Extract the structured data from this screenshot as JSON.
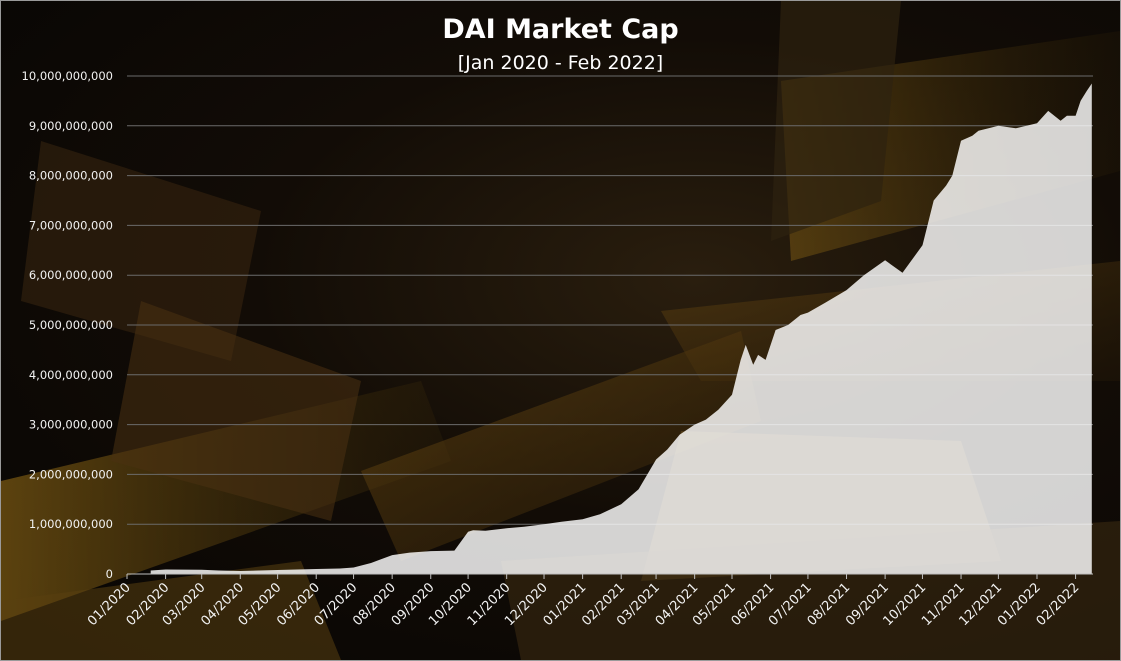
{
  "chart_data": {
    "type": "area",
    "title": "DAI Market Cap",
    "subtitle": "[Jan 2020 - Feb 2022]",
    "xlabel": "",
    "ylabel": "",
    "ylim": [
      0,
      10000000000
    ],
    "y_ticks": [
      0,
      1000000000,
      2000000000,
      3000000000,
      4000000000,
      5000000000,
      6000000000,
      7000000000,
      8000000000,
      9000000000,
      10000000000
    ],
    "y_tick_labels": [
      "0",
      "1,000,000,000",
      "2,000,000,000",
      "3,000,000,000",
      "4,000,000,000",
      "5,000,000,000",
      "6,000,000,000",
      "7,000,000,000",
      "8,000,000,000",
      "9,000,000,000",
      "10,000,000,000"
    ],
    "x_tick_labels": [
      "01/2020",
      "02/2020",
      "03/2020",
      "04/2020",
      "05/2020",
      "06/2020",
      "07/2020",
      "08/2020",
      "09/2020",
      "10/2020",
      "11/2020",
      "12/2020",
      "01/2021",
      "02/2021",
      "03/2021",
      "04/2021",
      "05/2021",
      "06/2021",
      "07/2021",
      "08/2021",
      "09/2021",
      "10/2021",
      "11/2021",
      "12/2021",
      "01/2022",
      "02/2022"
    ],
    "grid": true,
    "legend": "none",
    "fill_color": "#ffffff",
    "x": [
      "2020-01-20",
      "2020-02-01",
      "2020-03-01",
      "2020-03-15",
      "2020-04-01",
      "2020-05-01",
      "2020-06-01",
      "2020-06-20",
      "2020-07-01",
      "2020-07-15",
      "2020-08-01",
      "2020-08-15",
      "2020-09-01",
      "2020-09-20",
      "2020-10-01",
      "2020-10-05",
      "2020-10-15",
      "2020-11-01",
      "2020-11-15",
      "2020-12-01",
      "2020-12-15",
      "2021-01-01",
      "2021-01-15",
      "2021-02-01",
      "2021-02-15",
      "2021-03-01",
      "2021-03-10",
      "2021-03-20",
      "2021-04-01",
      "2021-04-10",
      "2021-04-20",
      "2021-05-01",
      "2021-05-08",
      "2021-05-12",
      "2021-05-18",
      "2021-05-22",
      "2021-05-28",
      "2021-06-05",
      "2021-06-15",
      "2021-06-25",
      "2021-07-01",
      "2021-07-15",
      "2021-08-01",
      "2021-08-15",
      "2021-09-01",
      "2021-09-15",
      "2021-10-01",
      "2021-10-10",
      "2021-10-20",
      "2021-10-25",
      "2021-11-01",
      "2021-11-10",
      "2021-11-15",
      "2021-12-01",
      "2021-12-15",
      "2022-01-01",
      "2022-01-10",
      "2022-01-20",
      "2022-01-25",
      "2022-02-01",
      "2022-02-05",
      "2022-02-10",
      "2022-02-14"
    ],
    "values": [
      70000000,
      90000000,
      85000000,
      70000000,
      60000000,
      80000000,
      100000000,
      110000000,
      130000000,
      220000000,
      380000000,
      430000000,
      460000000,
      470000000,
      850000000,
      880000000,
      870000000,
      920000000,
      950000000,
      1000000000,
      1050000000,
      1100000000,
      1200000000,
      1400000000,
      1700000000,
      2300000000,
      2500000000,
      2800000000,
      3000000000,
      3100000000,
      3300000000,
      3600000000,
      4300000000,
      4600000000,
      4200000000,
      4400000000,
      4300000000,
      4900000000,
      5000000000,
      5200000000,
      5250000000,
      5450000000,
      5700000000,
      6000000000,
      6300000000,
      6050000000,
      6600000000,
      7500000000,
      7800000000,
      8000000000,
      8700000000,
      8800000000,
      8900000000,
      9000000000,
      8950000000,
      9050000000,
      9300000000,
      9100000000,
      9200000000,
      9200000000,
      9500000000,
      9700000000,
      9850000000
    ]
  }
}
